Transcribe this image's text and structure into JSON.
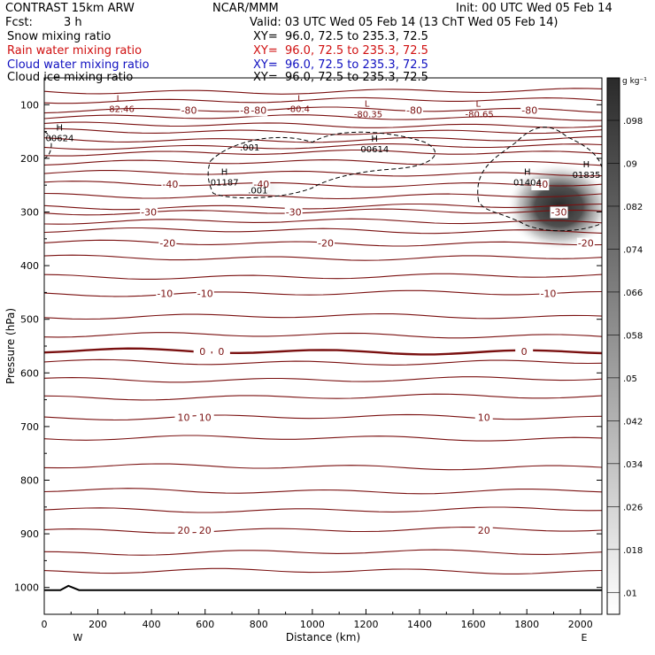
{
  "header": {
    "model": "CONTRAST 15km ARW",
    "org": "NCAR/MMM",
    "init": "Init: 00 UTC Wed 05 Feb 14",
    "fcst_label": "Fcst:",
    "fcst_value": "3 h",
    "valid": "Valid: 03 UTC Wed 05 Feb 14 (13 ChT Wed 05 Feb 14)",
    "fields": [
      {
        "name": "Snow mixing ratio",
        "xy": "XY=  96.0, 72.5 to 235.3, 72.5",
        "color": "#000000"
      },
      {
        "name": "Rain water mixing ratio",
        "xy": "XY=  96.0, 72.5 to 235.3, 72.5",
        "color": "#d01010"
      },
      {
        "name": "Cloud water mixing ratio",
        "xy": "XY=  96.0, 72.5 to 235.3, 72.5",
        "color": "#1010c0"
      },
      {
        "name": "Cloud ice mixing ratio",
        "xy": "XY=  96.0, 72.5 to 235.3, 72.5",
        "color": "#000000"
      }
    ]
  },
  "chart_data": {
    "type": "heatmap",
    "xlabel": "Distance (km)",
    "ylabel": "Pressure (hPa)",
    "xlim": [
      0,
      2080
    ],
    "ylim": [
      1050,
      50
    ],
    "x_ticks": [
      0,
      200,
      400,
      600,
      800,
      1000,
      1200,
      1400,
      1600,
      1800,
      2000
    ],
    "y_ticks": [
      100,
      200,
      300,
      400,
      500,
      600,
      700,
      800,
      900,
      1000
    ],
    "x_end_labels": {
      "left": "W",
      "right": "E"
    },
    "colorbar": {
      "units": "g kg⁻¹",
      "ticks": [
        ".098",
        ".09",
        ".082",
        ".074",
        ".066",
        ".058",
        ".05",
        ".042",
        ".034",
        ".026",
        ".018",
        ".01"
      ]
    },
    "cloud_ice_max": {
      "x": 1920,
      "p": 290,
      "value": 0.098
    },
    "extrema_labels": [
      {
        "kind": "L",
        "value": "-82.46",
        "x": 230,
        "p": 105
      },
      {
        "kind": "L",
        "value": "-80.4",
        "x": 905,
        "p": 105
      },
      {
        "kind": "L",
        "value": "-80.35",
        "x": 1155,
        "p": 115
      },
      {
        "kind": "L",
        "value": "-80.65",
        "x": 1570,
        "p": 115
      },
      {
        "kind": "H",
        "value": "00624",
        "x": 5,
        "p": 160
      },
      {
        "kind": "H",
        "value": "00614",
        "x": 1180,
        "p": 180
      },
      {
        "kind": "H",
        "value": "01187",
        "x": 620,
        "p": 242
      },
      {
        "kind": "H",
        "value": "01404",
        "x": 1750,
        "p": 242
      },
      {
        "kind": "H",
        "value": "01835",
        "x": 1970,
        "p": 228
      }
    ],
    "isotherms": [
      {
        "value": "-80",
        "p": 110,
        "labels_x": [
          540,
          760,
          800,
          1380,
          1810
        ]
      },
      {
        "value": "-40",
        "p": 248,
        "labels_x": [
          470,
          810,
          1850
        ]
      },
      {
        "value": "-30",
        "p": 300,
        "labels_x": [
          390,
          930,
          1920
        ]
      },
      {
        "value": "-20",
        "p": 358,
        "labels_x": [
          460,
          1050,
          2020
        ]
      },
      {
        "value": "-10",
        "p": 452,
        "labels_x": [
          450,
          600,
          1880
        ]
      },
      {
        "value": "0",
        "p": 560,
        "labels_x": [
          590,
          660,
          1790
        ]
      },
      {
        "value": "10",
        "p": 683,
        "labels_x": [
          520,
          600,
          1640
        ]
      },
      {
        "value": "20",
        "p": 893,
        "labels_x": [
          520,
          600,
          1640
        ]
      }
    ],
    "isotherm_levels_hpa": [
      75,
      92,
      110,
      124,
      138,
      150,
      165,
      178,
      190,
      208,
      228,
      248,
      270,
      290,
      300,
      318,
      335,
      358,
      385,
      420,
      452,
      495,
      530,
      560,
      580,
      612,
      645,
      683,
      722,
      775,
      820,
      855,
      893,
      935,
      970
    ],
    "cloud_contour_label": ".001",
    "surface_p": 1005
  }
}
